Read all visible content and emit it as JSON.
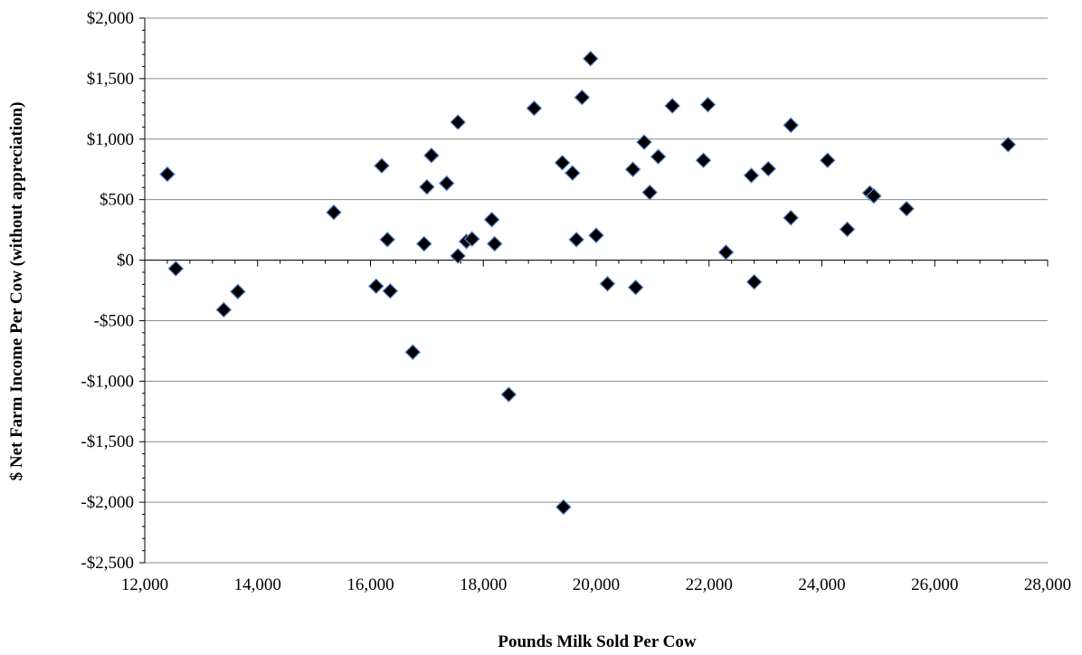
{
  "chart_data": {
    "type": "scatter",
    "title": "",
    "xlabel": "Pounds Milk Sold Per Cow",
    "ylabel": "$ Net Farm Income Per Cow (without appreciation)",
    "xlim": [
      12000,
      28000
    ],
    "ylim": [
      -2500,
      2000
    ],
    "x_ticks": [
      12000,
      14000,
      16000,
      18000,
      20000,
      22000,
      24000,
      26000,
      28000
    ],
    "x_tick_labels": [
      "12,000",
      "14,000",
      "16,000",
      "18,000",
      "20,000",
      "22,000",
      "24,000",
      "26,000",
      "28,000"
    ],
    "y_ticks": [
      2000,
      1500,
      1000,
      500,
      0,
      -500,
      -1000,
      -1500,
      -2000,
      -2500
    ],
    "y_tick_labels": [
      "$2,000",
      "$1,500",
      "$1,000",
      "$500",
      "$0",
      "-$500",
      "-$1,000",
      "-$1,500",
      "-$2,000",
      "-$2,500"
    ],
    "grid": "horizontal",
    "legend": "none",
    "marker": "diamond",
    "marker_fill": "#000000",
    "marker_edge": "#5b8bd0",
    "points": [
      {
        "x": 12400,
        "y": 710
      },
      {
        "x": 12550,
        "y": -70
      },
      {
        "x": 13400,
        "y": -410
      },
      {
        "x": 13650,
        "y": -260
      },
      {
        "x": 15350,
        "y": 395
      },
      {
        "x": 16100,
        "y": -215
      },
      {
        "x": 16200,
        "y": 780
      },
      {
        "x": 16300,
        "y": 170
      },
      {
        "x": 16350,
        "y": -255
      },
      {
        "x": 16750,
        "y": -760
      },
      {
        "x": 16950,
        "y": 135
      },
      {
        "x": 17000,
        "y": 605
      },
      {
        "x": 17080,
        "y": 865
      },
      {
        "x": 17350,
        "y": 635
      },
      {
        "x": 17550,
        "y": 35
      },
      {
        "x": 17550,
        "y": 1140
      },
      {
        "x": 17700,
        "y": 155
      },
      {
        "x": 17800,
        "y": 175
      },
      {
        "x": 18150,
        "y": 335
      },
      {
        "x": 18200,
        "y": 135
      },
      {
        "x": 18450,
        "y": -1110
      },
      {
        "x": 18900,
        "y": 1255
      },
      {
        "x": 19400,
        "y": 805
      },
      {
        "x": 19420,
        "y": -2040
      },
      {
        "x": 19580,
        "y": 720
      },
      {
        "x": 19650,
        "y": 170
      },
      {
        "x": 19750,
        "y": 1345
      },
      {
        "x": 19900,
        "y": 1665
      },
      {
        "x": 20000,
        "y": 205
      },
      {
        "x": 20200,
        "y": -195
      },
      {
        "x": 20650,
        "y": 750
      },
      {
        "x": 20700,
        "y": -225
      },
      {
        "x": 20850,
        "y": 975
      },
      {
        "x": 20950,
        "y": 560
      },
      {
        "x": 21100,
        "y": 855
      },
      {
        "x": 21350,
        "y": 1275
      },
      {
        "x": 21900,
        "y": 825
      },
      {
        "x": 21980,
        "y": 1285
      },
      {
        "x": 22300,
        "y": 65
      },
      {
        "x": 22750,
        "y": 700
      },
      {
        "x": 22800,
        "y": -180
      },
      {
        "x": 23050,
        "y": 755
      },
      {
        "x": 23450,
        "y": 1115
      },
      {
        "x": 23450,
        "y": 350
      },
      {
        "x": 24100,
        "y": 825
      },
      {
        "x": 24450,
        "y": 255
      },
      {
        "x": 24850,
        "y": 555
      },
      {
        "x": 24920,
        "y": 530
      },
      {
        "x": 25500,
        "y": 425
      },
      {
        "x": 27300,
        "y": 955
      }
    ]
  }
}
